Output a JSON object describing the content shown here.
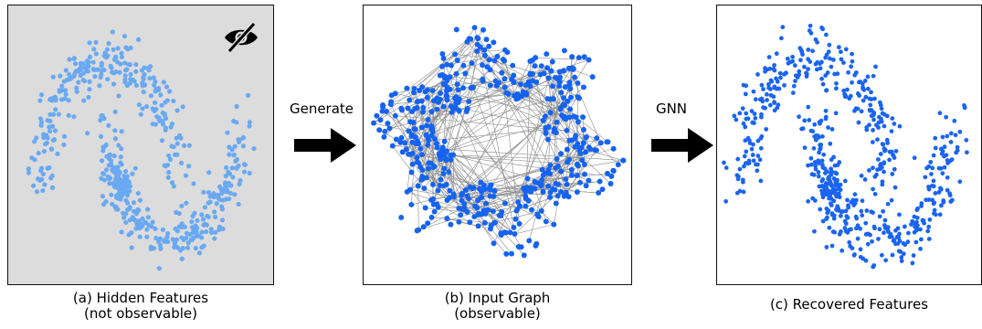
{
  "captions": {
    "a_line1": "(a) Hidden Features",
    "a_line2": "(not observable)",
    "b_line1": "(b) Input Graph",
    "b_line2": "(observable)",
    "c_line1": "(c) Recovered Features"
  },
  "steps": {
    "generate_label": "Generate",
    "gnn_label": "GNN"
  },
  "colors": {
    "hidden_points": "#6aa9f2",
    "graph_nodes": "#1563f0",
    "graph_edges": "#8e8e8e",
    "recovered_points": "#1a64f0",
    "panel_a_background": "#dcdcdc",
    "arrow": "#000000"
  },
  "icons": {
    "panel_a_badge": "eye-slash-icon",
    "step_arrows": "right-arrow-icon"
  }
}
